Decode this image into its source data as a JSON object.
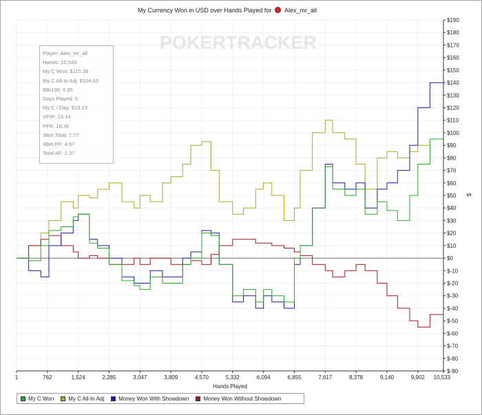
{
  "chart": {
    "title": "My Currency Won in USD over Hands Played for",
    "player": "Alex_mr_all",
    "watermark": "POKERTRACKER",
    "xlabel": "Hands Played",
    "ylabel": "$"
  },
  "stats": {
    "lines": [
      "Player: Alex_mr_all",
      "Hands: 10,533",
      "My C Won: $115.39",
      "My C All-In Adj: $104.65",
      "BB/100: 6.85",
      "Days Played: 6",
      "My C / Day: $19.23",
      "VPIP: 23.14",
      "PFR: 18.36",
      "3Bet Total: 7.77",
      "4Bet PF: 4.67",
      "Total AF: 2.37"
    ]
  },
  "legend": {
    "items": [
      "My C Won",
      "My C All-In Adj",
      "Money Won With Showdown",
      "Money Won Without Showdown"
    ]
  },
  "colors": {
    "my_c_won": "#2aa82a",
    "my_c_allin_adj": "#aaaa22",
    "money_won_with_showdown": "#1c1c9a",
    "money_won_without_showdown": "#a01818",
    "zero_line": "#707070"
  },
  "chart_data": {
    "type": "line",
    "title": "My Currency Won in USD over Hands Played for Alex_mr_all",
    "xlabel": "Hands Played",
    "ylabel": "$",
    "xlim": [
      1,
      10533
    ],
    "ylim": [
      -90,
      190
    ],
    "x_ticks": [
      1,
      762,
      1524,
      2285,
      3047,
      3809,
      4570,
      5332,
      6094,
      6855,
      7617,
      8378,
      9140,
      9902,
      10533
    ],
    "x_tick_labels": [
      "1",
      "762",
      "1,524",
      "2,285",
      "3,047",
      "3,809",
      "4,570",
      "5,332",
      "6,094",
      "6,855",
      "7,617",
      "8,378",
      "9,140",
      "9,902",
      "10,533"
    ],
    "y_ticks": [
      190,
      180,
      170,
      160,
      150,
      140,
      130,
      120,
      110,
      100,
      90,
      80,
      70,
      60,
      50,
      40,
      30,
      20,
      10,
      0,
      -10,
      -20,
      -30,
      -40,
      -50,
      -60,
      -70,
      -80,
      -90
    ],
    "y_tick_labels": [
      "$190",
      "$180",
      "$170",
      "$160",
      "$150",
      "$140",
      "$130",
      "$120",
      "$110",
      "$100",
      "$90",
      "$80",
      "$70",
      "$60",
      "$50",
      "$40",
      "$30",
      "$20",
      "$10",
      "$0",
      "$-10",
      "$-20",
      "$-30",
      "$-40",
      "$-50",
      "$-60",
      "$-70",
      "$-80",
      "$-90"
    ],
    "grid": true,
    "legend": "bottom-left",
    "x": [
      1,
      300,
      600,
      800,
      1100,
      1400,
      1524,
      1800,
      2000,
      2285,
      2600,
      2900,
      3047,
      3300,
      3600,
      3809,
      4100,
      4300,
      4570,
      4800,
      5000,
      5332,
      5600,
      5900,
      6094,
      6300,
      6600,
      6855,
      7000,
      7300,
      7617,
      7800,
      8100,
      8378,
      8600,
      8900,
      9140,
      9400,
      9700,
      9902,
      10200,
      10533
    ],
    "series": [
      {
        "name": "My C Won",
        "values": [
          0,
          -2,
          10,
          22,
          25,
          33,
          35,
          12,
          8,
          -5,
          -18,
          -22,
          -25,
          -15,
          -20,
          -20,
          -5,
          0,
          20,
          18,
          -5,
          -30,
          -25,
          -35,
          -25,
          -30,
          -35,
          0,
          10,
          40,
          73,
          55,
          50,
          55,
          35,
          45,
          38,
          30,
          50,
          75,
          95,
          115
        ]
      },
      {
        "name": "My C All-In Adj",
        "values": [
          0,
          10,
          20,
          30,
          45,
          40,
          50,
          48,
          55,
          60,
          45,
          40,
          50,
          45,
          60,
          65,
          75,
          90,
          93,
          70,
          45,
          35,
          40,
          55,
          60,
          50,
          30,
          40,
          70,
          100,
          110,
          100,
          95,
          75,
          55,
          80,
          85,
          80,
          85,
          90,
          95,
          104.65
        ]
      },
      {
        "name": "Money Won With Showdown",
        "values": [
          0,
          -10,
          -15,
          10,
          20,
          30,
          35,
          15,
          10,
          0,
          -15,
          -20,
          -20,
          -10,
          -15,
          -15,
          0,
          5,
          22,
          20,
          -5,
          -35,
          -30,
          -40,
          -30,
          -35,
          -40,
          -5,
          10,
          40,
          75,
          60,
          55,
          60,
          40,
          55,
          60,
          70,
          90,
          120,
          140,
          155
        ]
      },
      {
        "name": "Money Won Without Showdown",
        "values": [
          0,
          10,
          15,
          18,
          10,
          5,
          0,
          2,
          0,
          -5,
          -5,
          0,
          -5,
          0,
          0,
          -5,
          -5,
          -2,
          -5,
          3,
          10,
          15,
          15,
          12,
          12,
          10,
          8,
          5,
          2,
          -5,
          -10,
          -15,
          -10,
          -5,
          -10,
          -20,
          -30,
          -40,
          -50,
          -55,
          -45,
          -40
        ]
      }
    ]
  }
}
